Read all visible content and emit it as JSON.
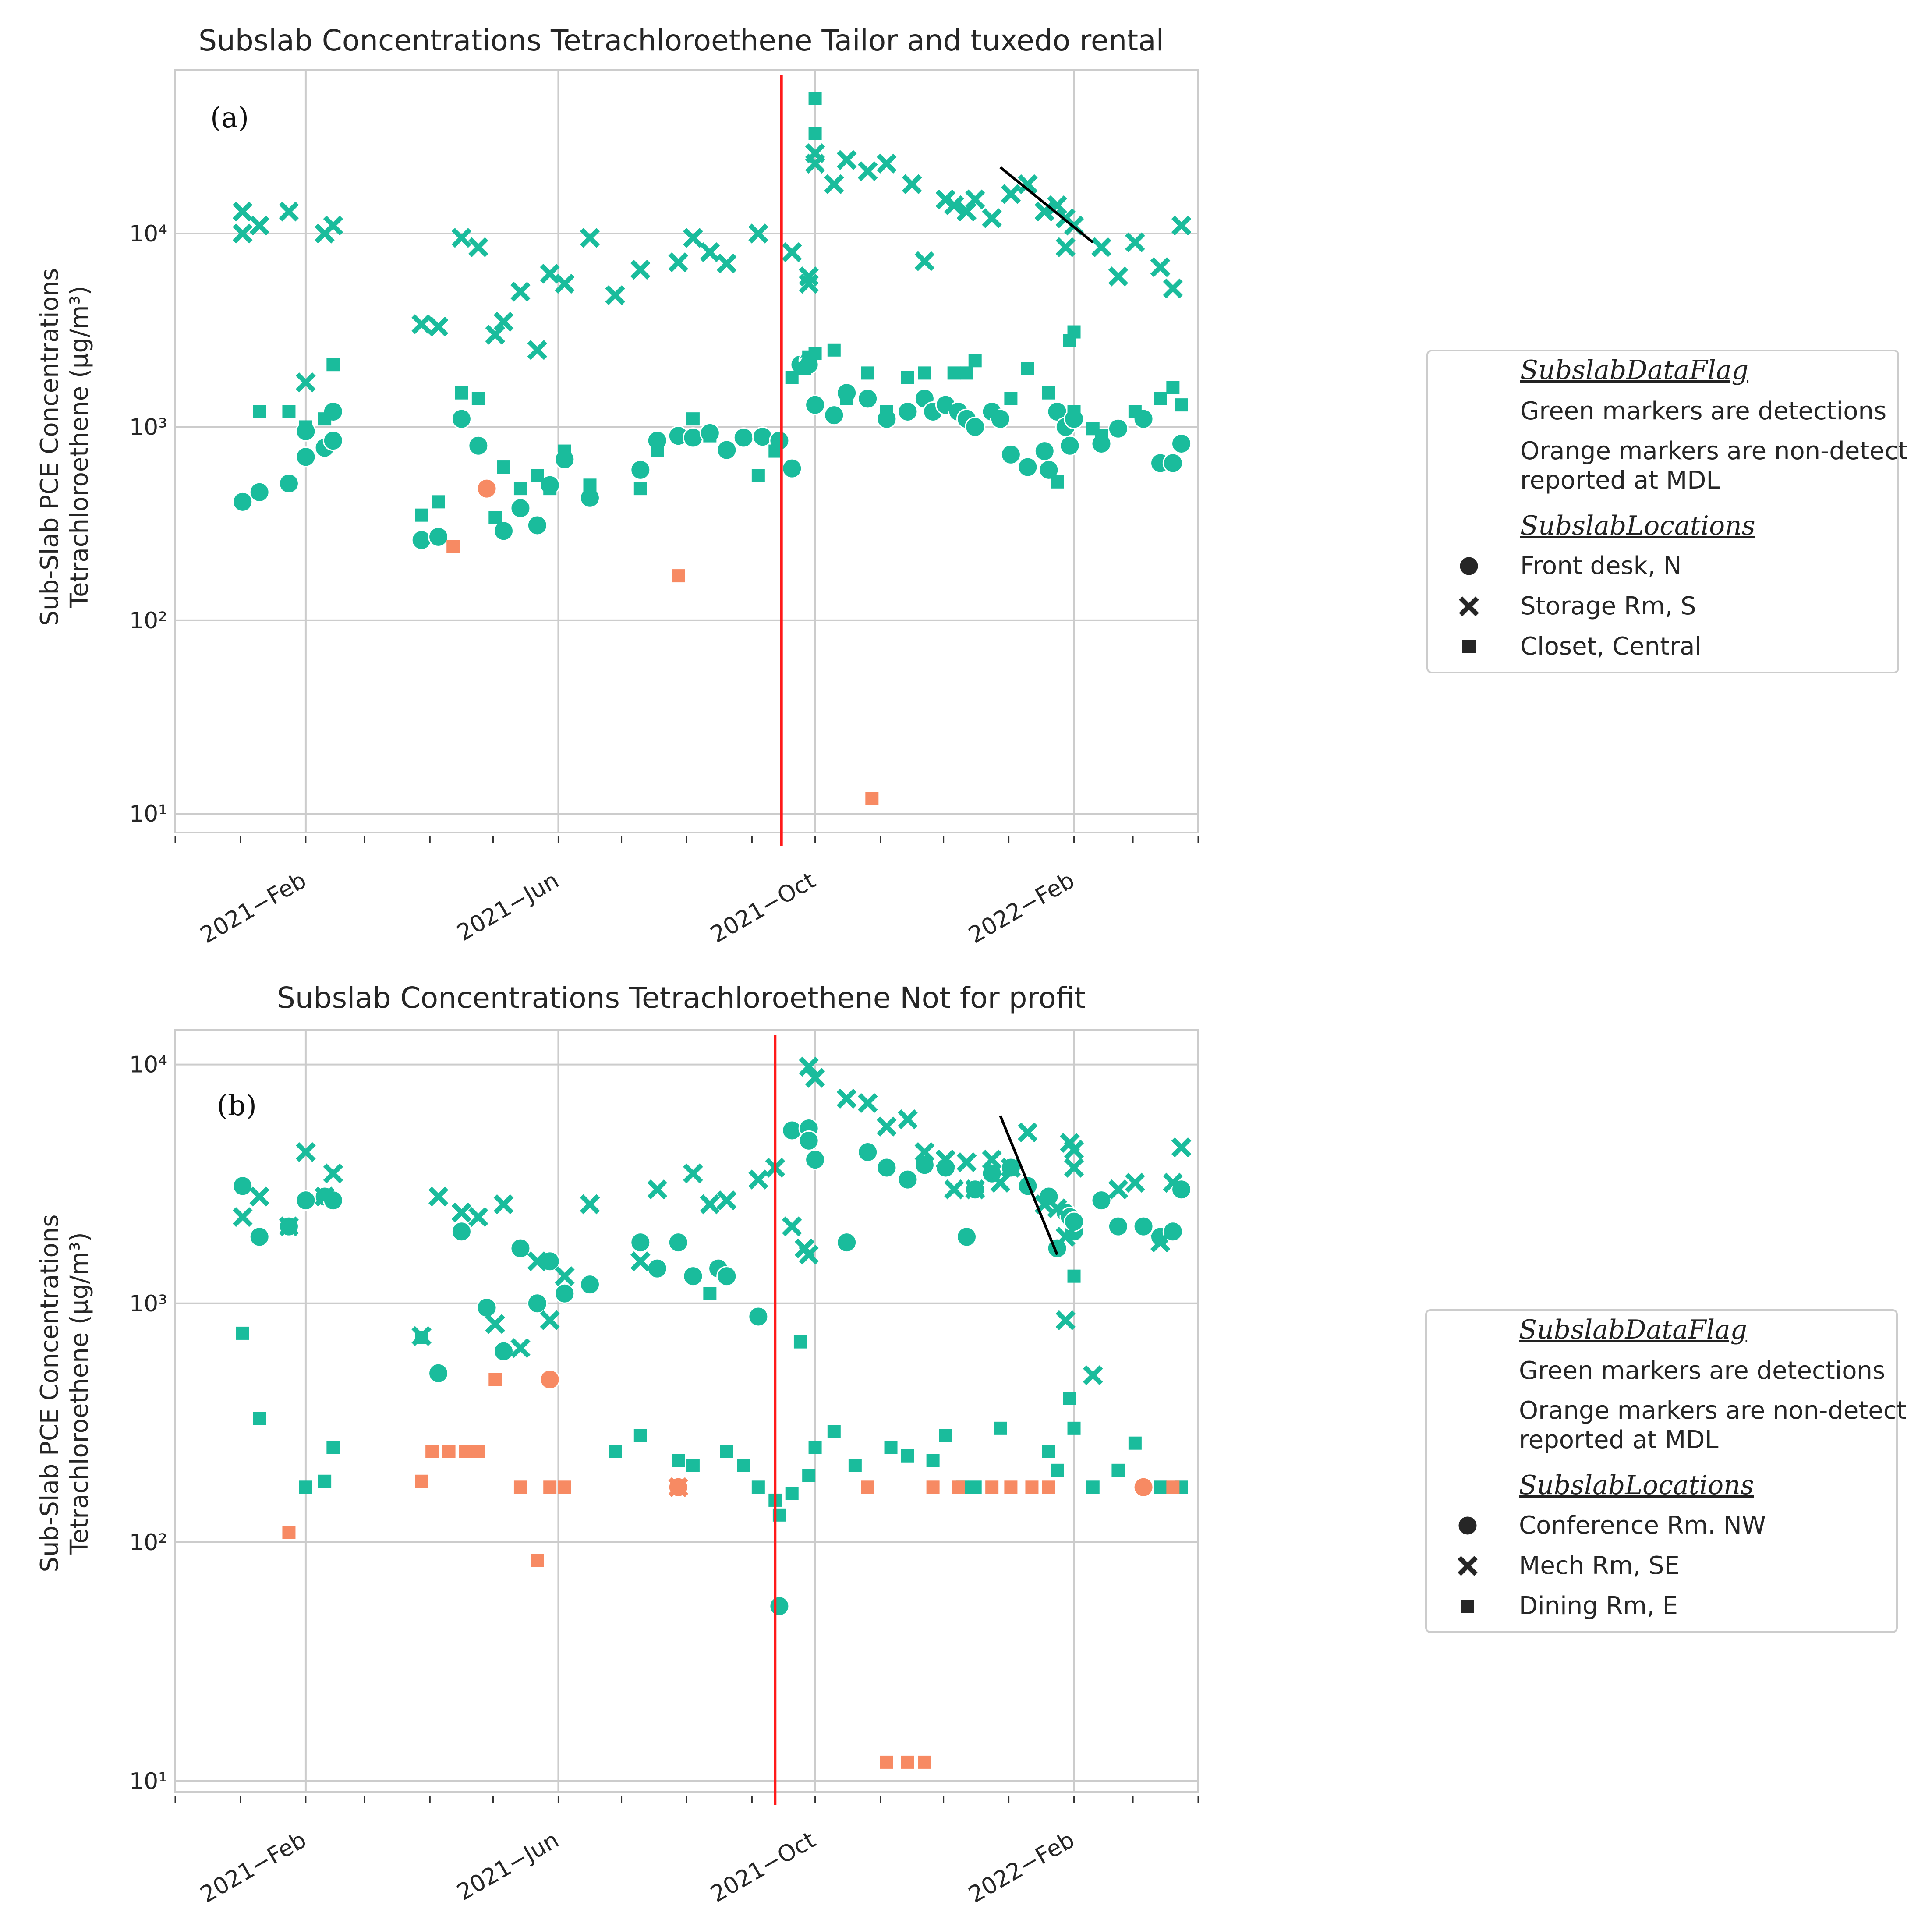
{
  "colors": {
    "detect": "#1abc9c",
    "nondetect": "#f78a63",
    "grid": "#cccccc",
    "event_line": "#ff1a1a",
    "trend_line": "#000000",
    "legend_green": "#1a8a1a",
    "legend_orange": "#f0a000"
  },
  "chart_data": [
    {
      "type": "scatter",
      "panel_label": "(a)",
      "title": "Subslab Concentrations Tetrachloroethene Tailor and tuxedo rental",
      "ylabel_line1": "Sub-Slab PCE Concentrations",
      "ylabel_line2": "Tetrachloroethene (µg/m³)",
      "yscale": "log",
      "ylim": [
        8,
        70000
      ],
      "xlim": [
        "2020-12-01",
        "2022-04-01"
      ],
      "ytick_labels": [
        "10¹",
        "10²",
        "10³",
        "10⁴"
      ],
      "ytick_values": [
        10,
        100,
        1000,
        10000
      ],
      "xtick_labels": [
        "2021−Feb",
        "2021−Jun",
        "2021−Oct",
        "2022−Feb"
      ],
      "xtick_dates": [
        "2021-02-01",
        "2021-06-01",
        "2021-10-01",
        "2022-02-01"
      ],
      "event_line_date": "2021-09-15",
      "trend_line": {
        "x": [
          "2021-12-28",
          "2022-02-10"
        ],
        "y": [
          22000,
          9000
        ]
      },
      "legend": {
        "flag_title": "SubslabDataFlag",
        "green_text": "Green markers are detections",
        "orange_text_1": "Orange markers are non-detect",
        "orange_text_2": "reported at MDL",
        "loc_title": "SubslabLocations",
        "locations": [
          "Front desk, N",
          "Storage Rm, S",
          "Closet, Central"
        ]
      },
      "series": [
        {
          "name": "Front desk, N",
          "marker": "circle",
          "flag": "detect",
          "x": [
            "2021-01-02",
            "2021-01-10",
            "2021-01-24",
            "2021-02-01",
            "2021-02-01",
            "2021-02-10",
            "2021-02-14",
            "2021-02-14",
            "2021-03-28",
            "2021-04-05",
            "2021-04-16",
            "2021-04-24",
            "2021-05-06",
            "2021-05-14",
            "2021-05-22",
            "2021-05-28",
            "2021-06-04",
            "2021-06-16",
            "2021-07-10",
            "2021-07-18",
            "2021-07-28",
            "2021-08-04",
            "2021-08-12",
            "2021-08-20",
            "2021-08-28",
            "2021-09-06",
            "2021-09-14",
            "2021-09-20",
            "2021-09-24",
            "2021-09-28",
            "2021-09-28",
            "2021-10-01",
            "2021-10-10",
            "2021-10-16",
            "2021-10-26",
            "2021-11-04",
            "2021-11-14",
            "2021-11-22",
            "2021-11-26",
            "2021-12-02",
            "2021-12-08",
            "2021-12-12",
            "2021-12-16",
            "2021-12-24",
            "2021-12-28",
            "2022-01-02",
            "2022-01-10",
            "2022-01-18",
            "2022-01-20",
            "2022-01-24",
            "2022-01-28",
            "2022-01-30",
            "2022-02-01",
            "2022-02-14",
            "2022-02-22",
            "2022-03-06",
            "2022-03-14",
            "2022-03-20",
            "2022-03-24"
          ],
          "y": [
            410,
            460,
            510,
            700,
            950,
            780,
            850,
            1200,
            260,
            270,
            1100,
            800,
            290,
            380,
            310,
            500,
            680,
            430,
            600,
            850,
            900,
            880,
            930,
            760,
            880,
            890,
            850,
            610,
            2100,
            2200,
            2100,
            1300,
            1150,
            1500,
            1400,
            1100,
            1200,
            1400,
            1200,
            1300,
            1200,
            1100,
            1000,
            1200,
            1100,
            720,
            620,
            750,
            600,
            1200,
            1000,
            800,
            1100,
            820,
            980,
            1100,
            650,
            650,
            820
          ]
        },
        {
          "name": "Storage Rm, S",
          "marker": "x",
          "flag": "detect",
          "x": [
            "2021-01-02",
            "2021-01-02",
            "2021-01-10",
            "2021-01-24",
            "2021-02-01",
            "2021-02-10",
            "2021-02-14",
            "2021-03-28",
            "2021-04-05",
            "2021-04-16",
            "2021-04-24",
            "2021-05-02",
            "2021-05-06",
            "2021-05-14",
            "2021-05-22",
            "2021-05-28",
            "2021-06-04",
            "2021-06-16",
            "2021-06-28",
            "2021-07-10",
            "2021-07-28",
            "2021-08-04",
            "2021-08-12",
            "2021-08-20",
            "2021-09-04",
            "2021-09-20",
            "2021-09-28",
            "2021-09-28",
            "2021-10-01",
            "2021-10-01",
            "2021-10-10",
            "2021-10-16",
            "2021-10-26",
            "2021-11-04",
            "2021-11-16",
            "2021-11-22",
            "2021-12-02",
            "2021-12-06",
            "2021-12-12",
            "2021-12-16",
            "2021-12-24",
            "2022-01-02",
            "2022-01-10",
            "2022-01-18",
            "2022-01-24",
            "2022-01-28",
            "2022-01-28",
            "2022-02-01",
            "2022-02-14",
            "2022-02-22",
            "2022-03-02",
            "2022-03-14",
            "2022-03-20",
            "2022-03-24"
          ],
          "y": [
            13000,
            10000,
            11000,
            13000,
            1700,
            10000,
            11000,
            3400,
            3300,
            9500,
            8500,
            3000,
            3500,
            5000,
            2500,
            6200,
            5500,
            9500,
            4800,
            6500,
            7100,
            9500,
            8000,
            7000,
            10000,
            8000,
            5500,
            6000,
            23000,
            26000,
            18000,
            24000,
            21000,
            23000,
            18000,
            7200,
            15000,
            14000,
            13000,
            15000,
            12000,
            16000,
            18000,
            13000,
            14000,
            12000,
            8500,
            11000,
            8500,
            6000,
            9000,
            6700,
            5200,
            11000
          ]
        },
        {
          "name": "Closet, Central",
          "marker": "square",
          "flag": "detect",
          "x": [
            "2021-01-10",
            "2021-01-24",
            "2021-02-01",
            "2021-02-10",
            "2021-02-14",
            "2021-03-28",
            "2021-04-05",
            "2021-04-16",
            "2021-04-24",
            "2021-05-02",
            "2021-05-06",
            "2021-05-14",
            "2021-05-22",
            "2021-05-28",
            "2021-06-04",
            "2021-06-16",
            "2021-07-10",
            "2021-07-18",
            "2021-08-04",
            "2021-08-12",
            "2021-09-04",
            "2021-09-12",
            "2021-09-20",
            "2021-09-26",
            "2021-09-28",
            "2021-10-01",
            "2021-10-01",
            "2021-10-01",
            "2021-10-10",
            "2021-10-16",
            "2021-10-26",
            "2021-11-04",
            "2021-11-14",
            "2021-11-22",
            "2021-12-02",
            "2021-12-06",
            "2021-12-12",
            "2021-12-16",
            "2021-12-24",
            "2022-01-02",
            "2022-01-10",
            "2022-01-20",
            "2022-01-24",
            "2022-01-30",
            "2022-02-01",
            "2022-02-01",
            "2022-02-10",
            "2022-02-14",
            "2022-03-02",
            "2022-03-14",
            "2022-03-20",
            "2022-03-24"
          ],
          "y": [
            1200,
            1200,
            1000,
            1100,
            2100,
            350,
            410,
            1500,
            1400,
            340,
            620,
            480,
            560,
            480,
            750,
            500,
            480,
            760,
            1100,
            900,
            560,
            750,
            1800,
            2000,
            2300,
            2400,
            50000,
            33000,
            2500,
            1400,
            1900,
            1200,
            1800,
            1900,
            1300,
            1900,
            1900,
            2200,
            1200,
            1400,
            2000,
            1500,
            520,
            2800,
            3100,
            1200,
            980,
            900,
            1200,
            1400,
            1600,
            1300
          ]
        },
        {
          "name": "Front desk, N",
          "marker": "circle",
          "flag": "nondetect",
          "x": [
            "2021-04-28"
          ],
          "y": [
            480
          ]
        },
        {
          "name": "Closet, Central",
          "marker": "square",
          "flag": "nondetect",
          "x": [
            "2021-04-12",
            "2021-07-28",
            "2021-10-28"
          ],
          "y": [
            240,
            170,
            12
          ]
        }
      ]
    },
    {
      "type": "scatter",
      "panel_label": "(b)",
      "title": "Subslab Concentrations Tetrachloroethene Not for profit",
      "ylabel_line1": "Sub-Slab PCE Concentrations",
      "ylabel_line2": "Tetrachloroethene (µg/m³)",
      "yscale": "log",
      "ylim": [
        9,
        14000
      ],
      "xlim": [
        "2020-12-01",
        "2022-04-01"
      ],
      "ytick_labels": [
        "10¹",
        "10²",
        "10³",
        "10⁴"
      ],
      "ytick_values": [
        10,
        100,
        1000,
        10000
      ],
      "xtick_labels": [
        "2021−Feb",
        "2021−Jun",
        "2021−Oct",
        "2022−Feb"
      ],
      "xtick_dates": [
        "2021-02-01",
        "2021-06-01",
        "2021-10-01",
        "2022-02-01"
      ],
      "event_line_date": "2021-09-12",
      "trend_line": {
        "x": [
          "2021-12-28",
          "2022-01-24"
        ],
        "y": [
          6100,
          1600
        ]
      },
      "legend": {
        "flag_title": "SubslabDataFlag",
        "green_text": "Green markers are detections",
        "orange_text_1": "Orange markers are non-detect",
        "orange_text_2": "reported at MDL",
        "loc_title": "SubslabLocations",
        "locations": [
          "Conference Rm. NW",
          "Mech Rm, SE",
          "Dining Rm, E"
        ]
      },
      "series": [
        {
          "name": "Conference Rm. NW",
          "marker": "circle",
          "flag": "detect",
          "x": [
            "2021-01-02",
            "2021-01-10",
            "2021-01-24",
            "2021-02-01",
            "2021-02-10",
            "2021-02-14",
            "2021-04-05",
            "2021-04-16",
            "2021-04-28",
            "2021-05-06",
            "2021-05-14",
            "2021-05-22",
            "2021-05-28",
            "2021-06-04",
            "2021-06-16",
            "2021-07-10",
            "2021-07-18",
            "2021-07-28",
            "2021-08-04",
            "2021-08-16",
            "2021-08-20",
            "2021-09-04",
            "2021-09-14",
            "2021-09-20",
            "2021-09-28",
            "2021-09-28",
            "2021-10-01",
            "2021-10-16",
            "2021-10-26",
            "2021-11-04",
            "2021-11-14",
            "2021-11-22",
            "2021-12-02",
            "2021-12-12",
            "2021-12-16",
            "2021-12-24",
            "2022-01-02",
            "2022-01-10",
            "2022-01-20",
            "2022-01-24",
            "2022-01-28",
            "2022-01-30",
            "2022-02-01",
            "2022-02-01",
            "2022-02-14",
            "2022-02-22",
            "2022-03-06",
            "2022-03-14",
            "2022-03-20",
            "2022-03-24"
          ],
          "y": [
            3100,
            1900,
            2100,
            2700,
            2800,
            2700,
            510,
            2000,
            960,
            630,
            1700,
            1000,
            1500,
            1100,
            1200,
            1800,
            1400,
            1800,
            1300,
            1400,
            1300,
            880,
            54,
            5300,
            5400,
            4800,
            4000,
            1800,
            4300,
            3700,
            3300,
            3800,
            3700,
            1900,
            3000,
            3500,
            3700,
            3100,
            2800,
            1700,
            2400,
            2300,
            2000,
            2200,
            2700,
            2100,
            2100,
            1900,
            2000,
            3000
          ]
        },
        {
          "name": "Mech Rm, SE",
          "marker": "x",
          "flag": "detect",
          "x": [
            "2021-01-02",
            "2021-01-10",
            "2021-01-24",
            "2021-02-01",
            "2021-02-10",
            "2021-02-14",
            "2021-03-28",
            "2021-04-05",
            "2021-04-16",
            "2021-04-24",
            "2021-05-02",
            "2021-05-06",
            "2021-05-14",
            "2021-05-22",
            "2021-05-28",
            "2021-06-04",
            "2021-06-16",
            "2021-07-10",
            "2021-07-18",
            "2021-08-04",
            "2021-08-12",
            "2021-08-20",
            "2021-09-04",
            "2021-09-12",
            "2021-09-20",
            "2021-09-26",
            "2021-09-28",
            "2021-09-28",
            "2021-10-01",
            "2021-10-16",
            "2021-10-26",
            "2021-11-04",
            "2021-11-14",
            "2021-11-22",
            "2021-12-02",
            "2021-12-06",
            "2021-12-12",
            "2021-12-16",
            "2021-12-24",
            "2021-12-28",
            "2022-01-02",
            "2022-01-10",
            "2022-01-18",
            "2022-01-24",
            "2022-01-28",
            "2022-01-28",
            "2022-01-30",
            "2022-02-01",
            "2022-02-01",
            "2022-02-10",
            "2022-02-22",
            "2022-03-02",
            "2022-03-14",
            "2022-03-20",
            "2022-03-24"
          ],
          "y": [
            2300,
            2800,
            2100,
            4300,
            2800,
            3500,
            730,
            2800,
            2400,
            2300,
            820,
            2600,
            650,
            1500,
            850,
            1300,
            2600,
            1500,
            3000,
            3500,
            2600,
            2700,
            3300,
            3700,
            2100,
            1700,
            1600,
            9800,
            8800,
            7200,
            6900,
            5500,
            5900,
            4300,
            4000,
            3000,
            3900,
            3000,
            4000,
            3200,
            3700,
            5200,
            2600,
            2500,
            850,
            1900,
            4700,
            3700,
            4400,
            500,
            3000,
            3200,
            1800,
            3200,
            4500
          ]
        },
        {
          "name": "Dining Rm, E",
          "marker": "square",
          "flag": "detect",
          "x": [
            "2021-01-02",
            "2021-01-10",
            "2021-02-01",
            "2021-02-10",
            "2021-02-14",
            "2021-03-28",
            "2021-06-28",
            "2021-07-10",
            "2021-07-28",
            "2021-08-04",
            "2021-08-12",
            "2021-08-20",
            "2021-08-28",
            "2021-09-04",
            "2021-09-12",
            "2021-09-14",
            "2021-09-20",
            "2021-09-24",
            "2021-09-28",
            "2021-10-01",
            "2021-10-10",
            "2021-10-20",
            "2021-11-06",
            "2021-11-14",
            "2021-11-26",
            "2021-12-02",
            "2021-12-10",
            "2021-12-16",
            "2021-12-28",
            "2022-01-20",
            "2022-01-24",
            "2022-01-30",
            "2022-02-01",
            "2022-02-01",
            "2022-02-10",
            "2022-02-22",
            "2022-03-02",
            "2022-03-14",
            "2022-03-24"
          ],
          "y": [
            750,
            330,
            170,
            180,
            250,
            720,
            240,
            280,
            220,
            210,
            1100,
            240,
            210,
            170,
            150,
            130,
            160,
            690,
            190,
            250,
            290,
            210,
            250,
            230,
            220,
            280,
            170,
            170,
            300,
            240,
            200,
            400,
            1300,
            300,
            170,
            200,
            260,
            170,
            170
          ]
        },
        {
          "name": "Conference Rm. NW",
          "marker": "circle",
          "flag": "nondetect",
          "x": [
            "2021-05-28",
            "2021-07-28",
            "2022-03-06"
          ],
          "y": [
            480,
            170,
            170
          ]
        },
        {
          "name": "Mech Rm, SE",
          "marker": "x",
          "flag": "nondetect",
          "x": [
            "2021-07-28"
          ],
          "y": [
            170
          ]
        },
        {
          "name": "Dining Rm, E",
          "marker": "square",
          "flag": "nondetect",
          "x": [
            "2021-01-24",
            "2021-03-28",
            "2021-04-02",
            "2021-04-10",
            "2021-04-18",
            "2021-04-24",
            "2021-05-02",
            "2021-05-14",
            "2021-05-22",
            "2021-05-28",
            "2021-06-04",
            "2021-10-26",
            "2021-11-04",
            "2021-11-14",
            "2021-11-22",
            "2021-11-26",
            "2021-12-08",
            "2021-12-24",
            "2022-01-02",
            "2022-01-12",
            "2022-01-20",
            "2022-03-06",
            "2022-03-20"
          ],
          "y": [
            110,
            180,
            240,
            240,
            240,
            240,
            480,
            170,
            84,
            170,
            170,
            170,
            12,
            12,
            12,
            170,
            170,
            170,
            170,
            170,
            170,
            170,
            170
          ]
        }
      ]
    }
  ]
}
